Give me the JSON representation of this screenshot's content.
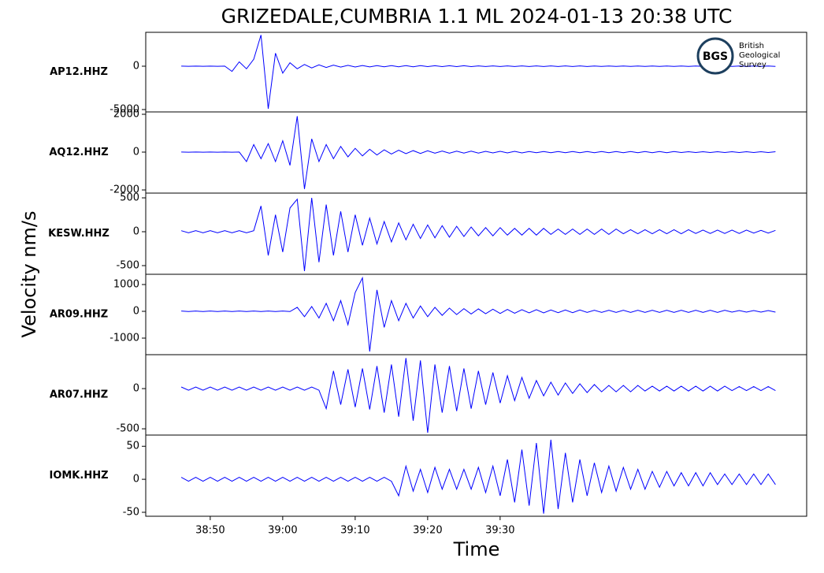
{
  "chart_data": {
    "type": "line",
    "title": "GRIZEDALE,CUMBRIA 1.1 ML   2024-01-13 20:38 UTC",
    "y_label": "Velocity nm/s",
    "x_label": "Time",
    "logo": {
      "abbreviation": "BGS",
      "name": [
        "British",
        "Geological",
        "Survey"
      ]
    },
    "xlim": [
      41.1,
      132.3
    ],
    "xticks": [
      {
        "value": 50,
        "label": "38:50"
      },
      {
        "value": 60,
        "label": "39:00"
      },
      {
        "value": 70,
        "label": "39:10"
      },
      {
        "value": 80,
        "label": "39:20"
      },
      {
        "value": 90,
        "label": "39:30"
      }
    ],
    "x": [
      46,
      47,
      48,
      49,
      50,
      51,
      52,
      53,
      54,
      55,
      56,
      57,
      58,
      59,
      60,
      61,
      62,
      63,
      64,
      65,
      66,
      67,
      68,
      69,
      70,
      71,
      72,
      73,
      74,
      75,
      76,
      77,
      78,
      79,
      80,
      81,
      82,
      83,
      84,
      85,
      86,
      87,
      88,
      89,
      90,
      91,
      92,
      93,
      94,
      95,
      96,
      97,
      98,
      99,
      100,
      101,
      102,
      103,
      104,
      105,
      106,
      107,
      108,
      109,
      110,
      111,
      112,
      113,
      114,
      115,
      116,
      117,
      118,
      119,
      120,
      121,
      122,
      123,
      124,
      125,
      126,
      127,
      128
    ],
    "panels": [
      {
        "name": "AP12.HHZ",
        "color": "#0000ff",
        "ylim": [
          -5273,
          3909
        ],
        "yticks": [
          -5000,
          0
        ],
        "values": [
          10,
          -10,
          10,
          -10,
          10,
          -10,
          10,
          -600,
          500,
          -300,
          800,
          3600,
          -4900,
          1500,
          -800,
          400,
          -300,
          200,
          -200,
          150,
          -150,
          120,
          -100,
          100,
          -90,
          80,
          -80,
          70,
          -70,
          70,
          -60,
          60,
          -60,
          60,
          -50,
          50,
          -50,
          50,
          -50,
          50,
          -50,
          40,
          -40,
          40,
          -40,
          40,
          -40,
          40,
          -40,
          40,
          -40,
          40,
          -40,
          40,
          -40,
          40,
          -40,
          30,
          -30,
          30,
          -30,
          30,
          -30,
          30,
          -30,
          30,
          -30,
          30,
          -30,
          30,
          -30,
          30,
          -30,
          30,
          -30,
          30,
          -30,
          30,
          -30,
          30,
          -30,
          30,
          -30
        ]
      },
      {
        "name": "AQ12.HHZ",
        "color": "#0000ff",
        "ylim": [
          -2167,
          2125
        ],
        "yticks": [
          -2000,
          0,
          2000
        ],
        "values": [
          5,
          -5,
          5,
          -5,
          5,
          -5,
          5,
          -5,
          5,
          -500,
          400,
          -350,
          450,
          -500,
          600,
          -700,
          1900,
          -1950,
          700,
          -500,
          400,
          -350,
          300,
          -250,
          200,
          -200,
          150,
          -150,
          120,
          -100,
          100,
          -80,
          80,
          -70,
          70,
          -60,
          60,
          -60,
          50,
          -50,
          50,
          -50,
          40,
          -40,
          40,
          -40,
          40,
          -40,
          30,
          -30,
          30,
          -30,
          30,
          -30,
          30,
          -30,
          30,
          -30,
          30,
          -30,
          30,
          -30,
          30,
          -30,
          30,
          -30,
          30,
          -30,
          30,
          -20,
          20,
          -20,
          20,
          -20,
          20,
          -20,
          20,
          -20,
          20,
          -20,
          20,
          -20,
          20
        ]
      },
      {
        "name": "KESW.HHZ",
        "color": "#0000ff",
        "ylim": [
          -628,
          570
        ],
        "yticks": [
          -500,
          0,
          500
        ],
        "values": [
          15,
          -15,
          15,
          -15,
          15,
          -15,
          15,
          -15,
          15,
          -15,
          15,
          380,
          -350,
          250,
          -300,
          350,
          480,
          -580,
          500,
          -450,
          400,
          -350,
          300,
          -300,
          250,
          -200,
          200,
          -180,
          150,
          -150,
          130,
          -120,
          110,
          -100,
          100,
          -90,
          90,
          -80,
          80,
          -70,
          70,
          -60,
          60,
          -60,
          60,
          -50,
          50,
          -50,
          50,
          -50,
          50,
          -40,
          40,
          -40,
          40,
          -40,
          40,
          -40,
          40,
          -40,
          40,
          -30,
          30,
          -30,
          30,
          -30,
          30,
          -30,
          30,
          -30,
          30,
          -25,
          25,
          -25,
          25,
          -25,
          25,
          -25,
          25,
          -20,
          20,
          -20,
          20
        ]
      },
      {
        "name": "AR09.HHZ",
        "color": "#0000ff",
        "ylim": [
          -1618,
          1382
        ],
        "yticks": [
          -1000,
          0,
          1000
        ],
        "values": [
          10,
          -10,
          10,
          -10,
          10,
          -10,
          10,
          -10,
          10,
          -10,
          10,
          -10,
          10,
          -10,
          10,
          -10,
          150,
          -200,
          180,
          -250,
          300,
          -350,
          400,
          -500,
          700,
          1250,
          -1500,
          800,
          -600,
          400,
          -350,
          300,
          -250,
          200,
          -200,
          150,
          -150,
          120,
          -120,
          100,
          -100,
          90,
          -90,
          80,
          -80,
          70,
          -70,
          60,
          -60,
          60,
          -60,
          50,
          -50,
          50,
          -50,
          50,
          -40,
          40,
          -40,
          40,
          -40,
          40,
          -40,
          40,
          -40,
          40,
          -40,
          40,
          -40,
          40,
          -40,
          40,
          -40,
          40,
          -40,
          40,
          -30,
          30,
          -30,
          30,
          -30,
          30,
          -30
        ]
      },
      {
        "name": "AR07.HHZ",
        "color": "#0000ff",
        "ylim": [
          -578,
          422
        ],
        "yticks": [
          -500,
          0
        ],
        "values": [
          20,
          -20,
          20,
          -20,
          20,
          -20,
          20,
          -20,
          20,
          -20,
          20,
          -20,
          20,
          -20,
          20,
          -20,
          20,
          -20,
          20,
          -20,
          -250,
          220,
          -200,
          240,
          -230,
          250,
          -260,
          280,
          -300,
          300,
          -350,
          380,
          -400,
          350,
          -550,
          300,
          -300,
          280,
          -280,
          250,
          -250,
          220,
          -200,
          200,
          -180,
          160,
          -150,
          140,
          -120,
          100,
          -90,
          80,
          -80,
          70,
          -60,
          60,
          -50,
          50,
          -40,
          40,
          -40,
          40,
          -40,
          40,
          -30,
          30,
          -30,
          30,
          -30,
          30,
          -30,
          30,
          -30,
          30,
          -30,
          30,
          -25,
          25,
          -25,
          25,
          -25,
          25,
          -25
        ]
      },
      {
        "name": "IOMK.HHZ",
        "color": "#0000ff",
        "ylim": [
          -56,
          67
        ],
        "yticks": [
          -50,
          0,
          50
        ],
        "values": [
          3,
          -3,
          3,
          -3,
          3,
          -3,
          3,
          -3,
          3,
          -3,
          3,
          -3,
          3,
          -3,
          3,
          -3,
          3,
          -3,
          3,
          -3,
          3,
          -3,
          3,
          -3,
          3,
          -3,
          3,
          -3,
          3,
          -3,
          -25,
          20,
          -18,
          15,
          -20,
          18,
          -15,
          15,
          -15,
          15,
          -15,
          18,
          -20,
          20,
          -25,
          30,
          -35,
          45,
          -40,
          55,
          -52,
          60,
          -45,
          40,
          -35,
          30,
          -25,
          25,
          -20,
          20,
          -18,
          18,
          -15,
          15,
          -15,
          12,
          -12,
          12,
          -10,
          10,
          -10,
          10,
          -10,
          10,
          -8,
          8,
          -8,
          8,
          -8,
          8,
          -8,
          8,
          -8
        ]
      }
    ]
  }
}
